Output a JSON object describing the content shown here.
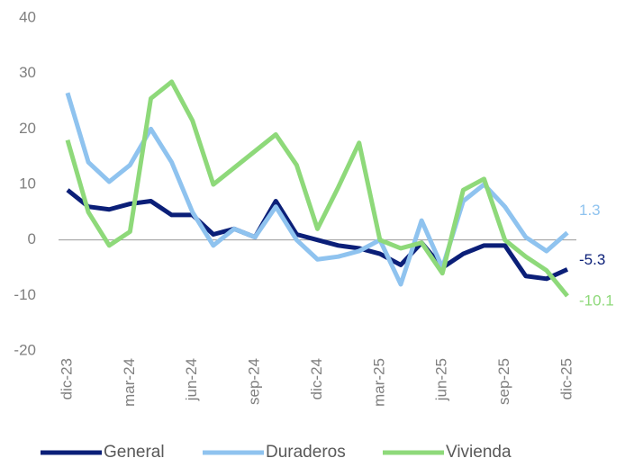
{
  "chart_data": {
    "type": "line",
    "categories": [
      "dic-23",
      null,
      null,
      "mar-24",
      null,
      null,
      "jun-24",
      null,
      null,
      "sep-24",
      null,
      null,
      "dic-24",
      null,
      null,
      "mar-25",
      null,
      null,
      "jun-25",
      null,
      null,
      "sep-25",
      null,
      null,
      "dic-25"
    ],
    "series": [
      {
        "name": "General",
        "color": "#0b1f78",
        "values": [
          9,
          6,
          5.5,
          6.5,
          7,
          4.5,
          4.5,
          1,
          2,
          0.5,
          7,
          1,
          0,
          -1,
          -1.5,
          -2.5,
          -4.5,
          -0.5,
          -5,
          -2.5,
          -1,
          -1,
          -6.5,
          -7,
          -5.3
        ]
      },
      {
        "name": "Duraderos",
        "color": "#8fc3ef",
        "values": [
          26.5,
          14,
          10.5,
          13.5,
          20,
          14,
          5,
          -1,
          2,
          0.5,
          6,
          0,
          -3.5,
          -3,
          -2,
          0,
          -8,
          3.5,
          -5,
          7,
          10,
          6,
          0.5,
          -2,
          1.3
        ]
      },
      {
        "name": "Vivienda",
        "color": "#8ed97a",
        "values": [
          18,
          5,
          -1,
          1.5,
          25.5,
          28.5,
          21.5,
          10,
          13,
          16,
          19,
          13.5,
          2,
          9.5,
          17.5,
          0,
          -1.5,
          -0.5,
          -6,
          9,
          11,
          0,
          -3,
          -5.5,
          -10.1
        ]
      }
    ],
    "ylim": [
      -20,
      40
    ],
    "yticks": [
      -20,
      -10,
      0,
      10,
      20,
      30,
      40
    ],
    "grid": false,
    "legend": "bottom"
  }
}
